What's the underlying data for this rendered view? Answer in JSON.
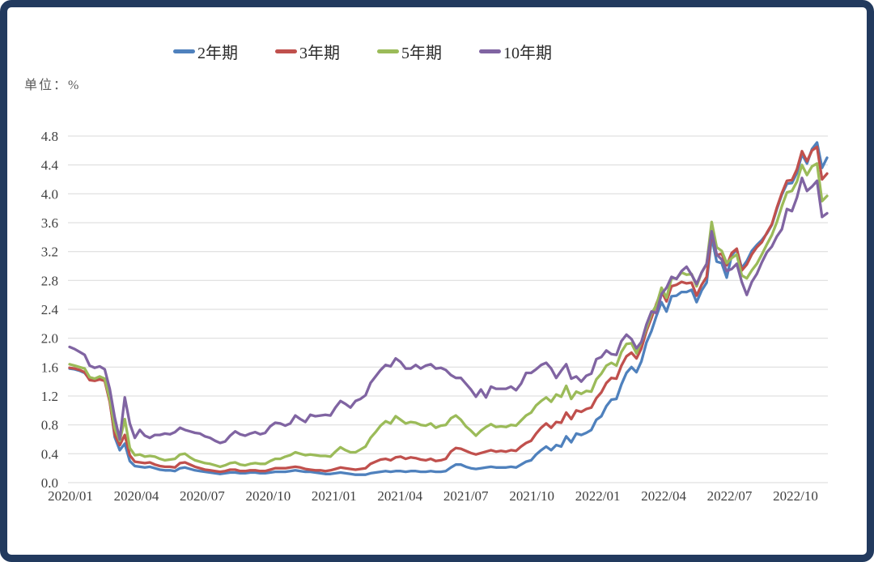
{
  "frame": {
    "border_color": "#223A5E",
    "background": "#FFFFFF"
  },
  "unit_label": "单位：%",
  "chart_data": {
    "type": "line",
    "title": "",
    "unit": "%",
    "ylim": [
      0.0,
      4.8
    ],
    "ytick_interval": 0.4,
    "yticks": [
      "0.0",
      "0.4",
      "0.8",
      "1.2",
      "1.6",
      "2.0",
      "2.4",
      "2.8",
      "3.2",
      "3.6",
      "4.0",
      "4.4",
      "4.8"
    ],
    "xticks": [
      "2020/01",
      "2020/04",
      "2020/07",
      "2020/10",
      "2021/01",
      "2021/04",
      "2021/07",
      "2021/10",
      "2022/01",
      "2022/04",
      "2022/07",
      "2022/10"
    ],
    "grid": "horizontal",
    "grid_color": "#D9D9D9",
    "tick_label_color": "#404040",
    "legend_position": "top",
    "sampling": "weekly",
    "series": [
      {
        "name": "2年期",
        "color": "#4F81BD",
        "values": [
          1.58,
          1.57,
          1.55,
          1.52,
          1.43,
          1.42,
          1.44,
          1.42,
          1.15,
          0.63,
          0.45,
          0.54,
          0.3,
          0.23,
          0.22,
          0.21,
          0.22,
          0.2,
          0.18,
          0.17,
          0.17,
          0.16,
          0.2,
          0.21,
          0.19,
          0.17,
          0.16,
          0.15,
          0.14,
          0.13,
          0.12,
          0.13,
          0.14,
          0.14,
          0.13,
          0.13,
          0.14,
          0.14,
          0.13,
          0.13,
          0.14,
          0.15,
          0.15,
          0.15,
          0.16,
          0.17,
          0.16,
          0.15,
          0.15,
          0.14,
          0.13,
          0.12,
          0.12,
          0.13,
          0.14,
          0.13,
          0.12,
          0.11,
          0.11,
          0.11,
          0.13,
          0.14,
          0.15,
          0.16,
          0.15,
          0.16,
          0.16,
          0.15,
          0.16,
          0.16,
          0.15,
          0.15,
          0.16,
          0.15,
          0.15,
          0.16,
          0.21,
          0.25,
          0.25,
          0.22,
          0.2,
          0.19,
          0.2,
          0.21,
          0.22,
          0.21,
          0.21,
          0.21,
          0.22,
          0.21,
          0.25,
          0.29,
          0.31,
          0.39,
          0.45,
          0.5,
          0.45,
          0.52,
          0.5,
          0.64,
          0.56,
          0.68,
          0.66,
          0.69,
          0.73,
          0.87,
          0.92,
          1.06,
          1.15,
          1.16,
          1.36,
          1.52,
          1.6,
          1.53,
          1.68,
          1.94,
          2.1,
          2.31,
          2.5,
          2.37,
          2.58,
          2.59,
          2.64,
          2.64,
          2.67,
          2.5,
          2.66,
          2.77,
          3.4,
          3.06,
          3.04,
          2.84,
          3.15,
          3.23,
          2.97,
          3.07,
          3.21,
          3.29,
          3.36,
          3.45,
          3.57,
          3.79,
          3.99,
          4.14,
          4.15,
          4.29,
          4.55,
          4.42,
          4.62,
          4.71,
          4.36,
          4.5
        ]
      },
      {
        "name": "3年期",
        "color": "#C0504D",
        "values": [
          1.59,
          1.58,
          1.56,
          1.53,
          1.42,
          1.41,
          1.43,
          1.41,
          1.12,
          0.66,
          0.52,
          0.66,
          0.38,
          0.29,
          0.28,
          0.27,
          0.28,
          0.25,
          0.23,
          0.22,
          0.22,
          0.21,
          0.27,
          0.28,
          0.25,
          0.22,
          0.2,
          0.18,
          0.17,
          0.16,
          0.15,
          0.16,
          0.18,
          0.18,
          0.16,
          0.16,
          0.17,
          0.17,
          0.16,
          0.16,
          0.18,
          0.2,
          0.2,
          0.2,
          0.21,
          0.22,
          0.21,
          0.19,
          0.18,
          0.17,
          0.17,
          0.16,
          0.17,
          0.19,
          0.21,
          0.2,
          0.19,
          0.18,
          0.19,
          0.2,
          0.26,
          0.29,
          0.32,
          0.33,
          0.31,
          0.35,
          0.36,
          0.33,
          0.35,
          0.34,
          0.32,
          0.31,
          0.33,
          0.3,
          0.31,
          0.33,
          0.43,
          0.48,
          0.47,
          0.44,
          0.41,
          0.39,
          0.41,
          0.43,
          0.45,
          0.43,
          0.44,
          0.43,
          0.45,
          0.44,
          0.5,
          0.55,
          0.58,
          0.68,
          0.76,
          0.82,
          0.76,
          0.84,
          0.83,
          0.97,
          0.88,
          1.0,
          0.98,
          1.02,
          1.04,
          1.17,
          1.25,
          1.38,
          1.45,
          1.44,
          1.62,
          1.75,
          1.8,
          1.72,
          1.86,
          2.1,
          2.28,
          2.48,
          2.65,
          2.51,
          2.72,
          2.74,
          2.78,
          2.76,
          2.77,
          2.59,
          2.74,
          2.85,
          3.47,
          3.15,
          3.17,
          3.01,
          3.18,
          3.24,
          2.94,
          3.02,
          3.16,
          3.26,
          3.33,
          3.46,
          3.58,
          3.81,
          4.01,
          4.18,
          4.19,
          4.34,
          4.59,
          4.45,
          4.6,
          4.65,
          4.2,
          4.28
        ]
      },
      {
        "name": "5年期",
        "color": "#9BBB59",
        "values": [
          1.64,
          1.62,
          1.6,
          1.58,
          1.46,
          1.44,
          1.47,
          1.44,
          1.16,
          0.75,
          0.58,
          0.88,
          0.48,
          0.38,
          0.39,
          0.36,
          0.37,
          0.36,
          0.33,
          0.31,
          0.32,
          0.33,
          0.39,
          0.4,
          0.35,
          0.31,
          0.29,
          0.27,
          0.26,
          0.24,
          0.22,
          0.24,
          0.27,
          0.28,
          0.25,
          0.24,
          0.26,
          0.27,
          0.26,
          0.26,
          0.3,
          0.33,
          0.33,
          0.36,
          0.38,
          0.42,
          0.4,
          0.38,
          0.39,
          0.38,
          0.37,
          0.37,
          0.36,
          0.43,
          0.49,
          0.45,
          0.42,
          0.42,
          0.46,
          0.5,
          0.62,
          0.7,
          0.79,
          0.85,
          0.82,
          0.92,
          0.87,
          0.82,
          0.84,
          0.83,
          0.8,
          0.79,
          0.82,
          0.76,
          0.79,
          0.8,
          0.89,
          0.93,
          0.87,
          0.78,
          0.72,
          0.65,
          0.72,
          0.77,
          0.81,
          0.77,
          0.78,
          0.77,
          0.8,
          0.79,
          0.86,
          0.93,
          0.97,
          1.07,
          1.13,
          1.18,
          1.12,
          1.22,
          1.19,
          1.34,
          1.16,
          1.26,
          1.23,
          1.27,
          1.26,
          1.43,
          1.51,
          1.62,
          1.66,
          1.62,
          1.81,
          1.92,
          1.93,
          1.79,
          1.95,
          2.14,
          2.34,
          2.46,
          2.7,
          2.56,
          2.83,
          2.83,
          2.91,
          2.88,
          2.89,
          2.72,
          2.91,
          3.03,
          3.61,
          3.26,
          3.21,
          3.04,
          3.11,
          3.16,
          2.87,
          2.83,
          2.94,
          3.03,
          3.16,
          3.3,
          3.43,
          3.61,
          3.83,
          4.02,
          4.04,
          4.17,
          4.4,
          4.26,
          4.38,
          4.42,
          3.9,
          3.97
        ]
      },
      {
        "name": "10年期",
        "color": "#8064A2",
        "values": [
          1.88,
          1.85,
          1.81,
          1.77,
          1.62,
          1.59,
          1.61,
          1.57,
          1.3,
          0.9,
          0.6,
          1.18,
          0.82,
          0.62,
          0.73,
          0.65,
          0.62,
          0.66,
          0.66,
          0.68,
          0.67,
          0.7,
          0.76,
          0.73,
          0.71,
          0.69,
          0.68,
          0.64,
          0.62,
          0.58,
          0.55,
          0.57,
          0.65,
          0.71,
          0.67,
          0.65,
          0.68,
          0.7,
          0.67,
          0.69,
          0.78,
          0.83,
          0.82,
          0.79,
          0.82,
          0.93,
          0.88,
          0.84,
          0.94,
          0.92,
          0.93,
          0.94,
          0.93,
          1.04,
          1.13,
          1.09,
          1.04,
          1.13,
          1.16,
          1.21,
          1.38,
          1.47,
          1.56,
          1.63,
          1.61,
          1.72,
          1.67,
          1.58,
          1.58,
          1.63,
          1.58,
          1.62,
          1.64,
          1.58,
          1.59,
          1.56,
          1.49,
          1.45,
          1.45,
          1.37,
          1.29,
          1.19,
          1.29,
          1.18,
          1.33,
          1.3,
          1.3,
          1.3,
          1.33,
          1.28,
          1.37,
          1.52,
          1.52,
          1.57,
          1.63,
          1.66,
          1.58,
          1.45,
          1.55,
          1.64,
          1.44,
          1.47,
          1.4,
          1.48,
          1.51,
          1.71,
          1.74,
          1.83,
          1.78,
          1.77,
          1.96,
          2.05,
          1.99,
          1.86,
          1.95,
          2.19,
          2.37,
          2.35,
          2.61,
          2.7,
          2.85,
          2.82,
          2.93,
          2.99,
          2.88,
          2.75,
          2.91,
          3.03,
          3.48,
          3.16,
          3.09,
          2.93,
          2.96,
          3.03,
          2.78,
          2.6,
          2.78,
          2.89,
          3.05,
          3.19,
          3.27,
          3.41,
          3.51,
          3.79,
          3.76,
          3.95,
          4.22,
          4.04,
          4.1,
          4.18,
          3.68,
          3.73
        ]
      }
    ]
  }
}
